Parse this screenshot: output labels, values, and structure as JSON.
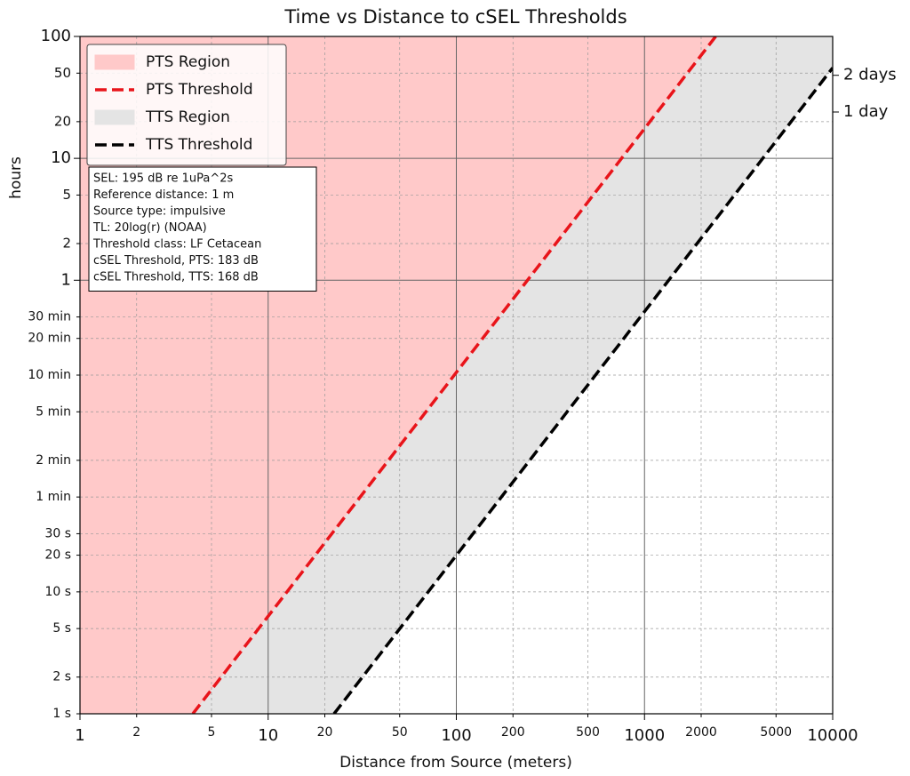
{
  "chart_data": {
    "type": "line",
    "title": "Time vs Distance to cSEL Thresholds",
    "x_label": "Distance from Source (meters)",
    "y_label": "hours",
    "x_log": true,
    "y_log": true,
    "grid": true,
    "legend": "upper left",
    "xlim": [
      1,
      10000
    ],
    "xticks": [
      1,
      2,
      5,
      10,
      20,
      50,
      100,
      200,
      500,
      1000,
      2000,
      5000,
      10000
    ],
    "ylim": [
      0.000277778,
      100
    ],
    "yticks": [
      {
        "value": 0.000277778,
        "label": "1 s"
      },
      {
        "value": 0.000555556,
        "label": "2 s"
      },
      {
        "value": 0.001388889,
        "label": "5 s"
      },
      {
        "value": 0.002777778,
        "label": "10 s"
      },
      {
        "value": 0.005555556,
        "label": "20 s"
      },
      {
        "value": 0.008333333,
        "label": "30 s"
      },
      {
        "value": 0.016666667,
        "label": "1 min"
      },
      {
        "value": 0.033333333,
        "label": "2 min"
      },
      {
        "value": 0.083333333,
        "label": "5 min"
      },
      {
        "value": 0.166666667,
        "label": "10 min"
      },
      {
        "value": 0.333333333,
        "label": "20 min"
      },
      {
        "value": 0.5,
        "label": "30 min"
      },
      1,
      2,
      5,
      10,
      20,
      50,
      100
    ],
    "y2lim": [
      0.000277778,
      100
    ],
    "y2ticks": [
      {
        "value": 48,
        "label": "2 days"
      },
      {
        "value": 24,
        "label": "1 day"
      }
    ],
    "series": [
      {
        "name": "PTS Region",
        "color": "#ffc9c9",
        "fill": true,
        "x": [
          3.98,
          2389
        ],
        "values": [
          0.000277778,
          100
        ]
      },
      {
        "name": "PTS Threshold",
        "color": "#e8141a",
        "fill": false,
        "x": [
          3.98,
          2389
        ],
        "values": [
          0.000277778,
          100
        ]
      },
      {
        "name": "TTS Region",
        "color": "#e4e4e4",
        "fill": true,
        "x": [
          22.4,
          10000
        ],
        "values": [
          0.000277778,
          55.3
        ]
      },
      {
        "name": "TTS Threshold",
        "color": "#000000",
        "fill": false,
        "x": [
          22.4,
          10000
        ],
        "values": [
          0.000277778,
          55.3
        ]
      }
    ],
    "annotation": [
      "SEL: 195 dB re 1uPa^2s",
      "Reference distance: 1 m",
      "Source type: impulsive",
      "TL: 20log(r) (NOAA)",
      "Threshold class: LF Cetacean",
      "cSEL Threshold, PTS: 183 dB",
      "cSEL Threshold, TTS: 168 dB"
    ]
  }
}
